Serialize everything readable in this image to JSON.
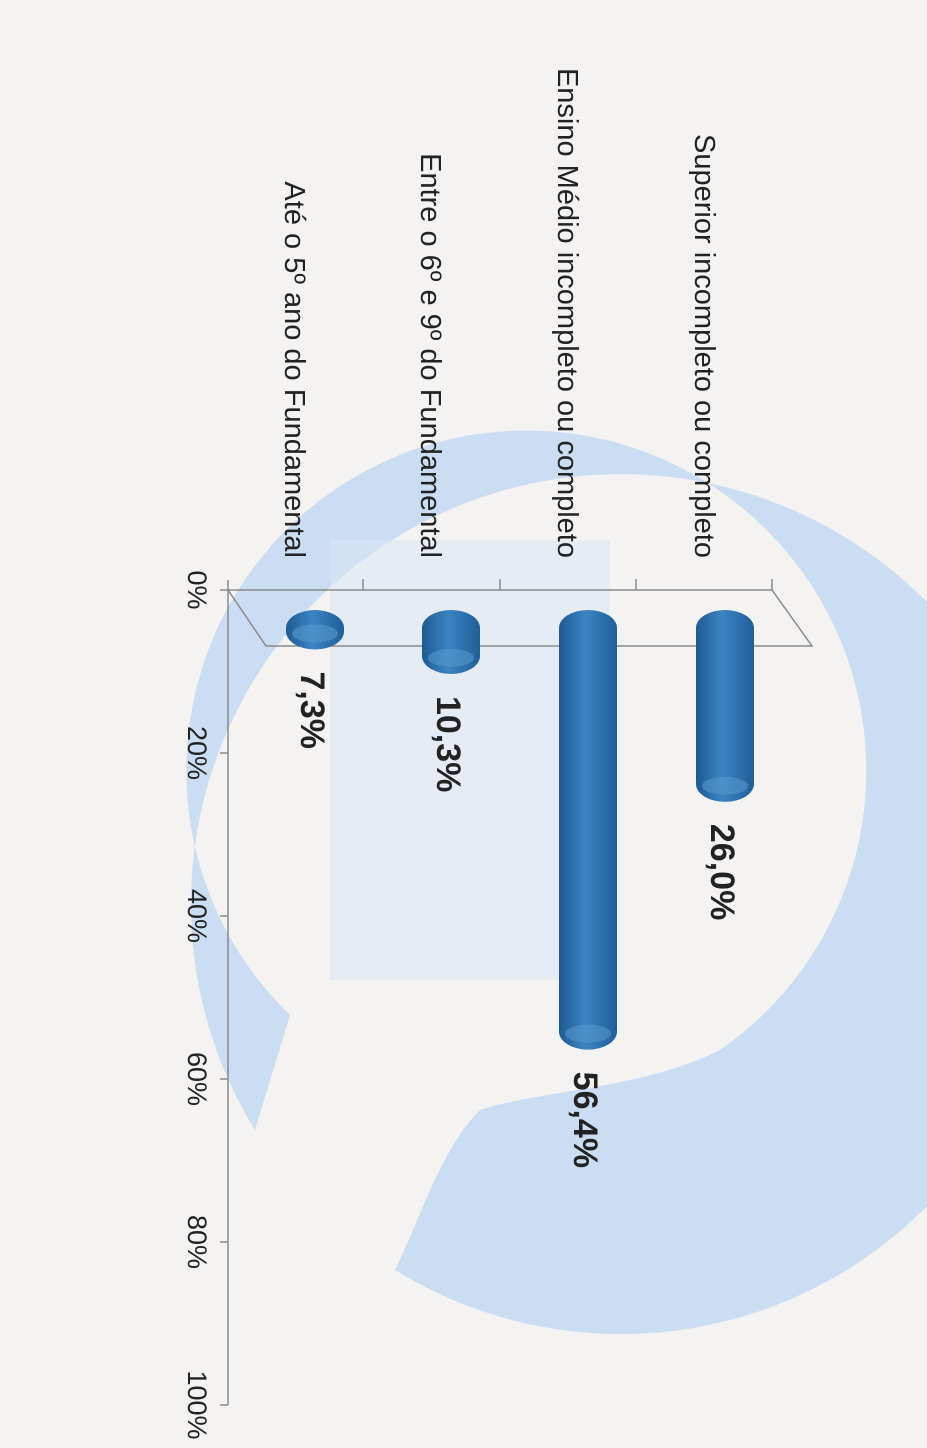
{
  "chart_data": {
    "type": "bar",
    "orientation": "horizontal",
    "categories": [
      "Superior incompleto ou completo",
      "Ensino Médio incompleto ou completo",
      "Entre o 6º e 9º do Fundamental",
      "Até o 5º ano do Fundamental"
    ],
    "values": [
      26.0,
      56.4,
      10.3,
      7.3
    ],
    "value_labels": [
      "26,0%",
      "56,4%",
      "10,3%",
      "7,3%"
    ],
    "ticks": [
      "0%",
      "20%",
      "40%",
      "60%",
      "80%",
      "100%"
    ],
    "xlim": [
      0,
      100
    ],
    "grid": false,
    "legend": "none",
    "colors": {
      "bar": "#2f74b1",
      "bar_dark": "#1d5a93",
      "bar_light": "#5a9ad0",
      "watermark": "#c6daf3",
      "axis": "#8a8a8a",
      "background": "#f4f3f1"
    }
  }
}
